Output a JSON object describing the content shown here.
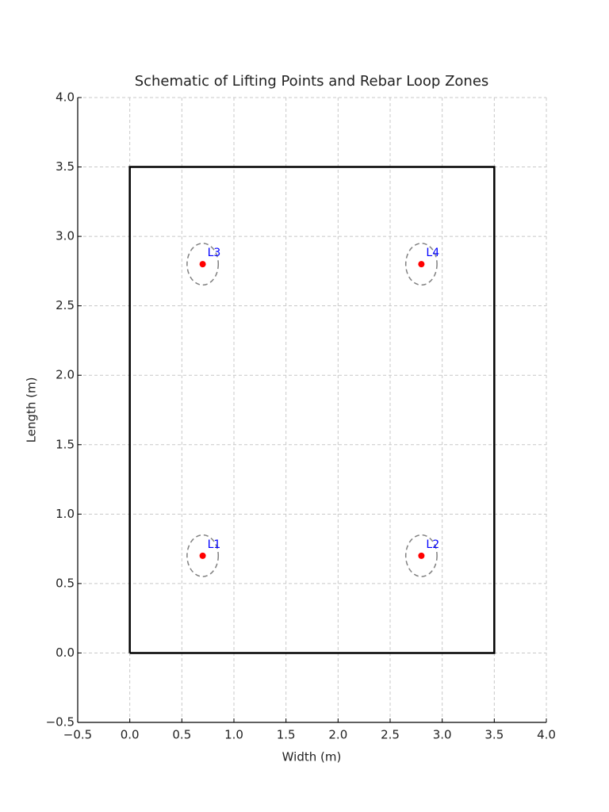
{
  "chart_data": {
    "type": "scatter",
    "title": "Schematic of Lifting Points and Rebar Loop Zones",
    "xlabel": "Width (m)",
    "ylabel": "Length (m)",
    "x": [
      0.7,
      2.8,
      0.7,
      2.8
    ],
    "values": [
      0.7,
      0.7,
      2.8,
      2.8
    ],
    "point_labels": [
      "L1",
      "L2",
      "L3",
      "L4"
    ],
    "color": "#ff0000",
    "label_color": "#0000ff",
    "zone_radius": 0.15,
    "zone_color": "#808080",
    "outline": {
      "x": [
        0,
        3.5,
        3.5,
        0,
        0
      ],
      "values": [
        0,
        0,
        3.5,
        3.5,
        0
      ],
      "color": "#000000"
    },
    "xlim": [
      -0.5,
      4.0
    ],
    "ylim": [
      -0.5,
      4.0
    ],
    "xticks": [
      {
        "value": -0.5,
        "label": "−0.5"
      },
      {
        "value": 0,
        "label": "0.0"
      },
      0.5,
      {
        "value": 1,
        "label": "1.0"
      },
      1.5,
      {
        "value": 2,
        "label": "2.0"
      },
      2.5,
      {
        "value": 3,
        "label": "3.0"
      },
      3.5,
      {
        "value": 4,
        "label": "4.0"
      }
    ],
    "yticks": [
      {
        "value": -0.5,
        "label": "−0.5"
      },
      {
        "value": 0,
        "label": "0.0"
      },
      0.5,
      {
        "value": 1,
        "label": "1.0"
      },
      1.5,
      {
        "value": 2,
        "label": "2.0"
      },
      2.5,
      {
        "value": 3,
        "label": "3.0"
      },
      3.5,
      {
        "value": 4,
        "label": "4.0"
      }
    ],
    "grid": true
  }
}
